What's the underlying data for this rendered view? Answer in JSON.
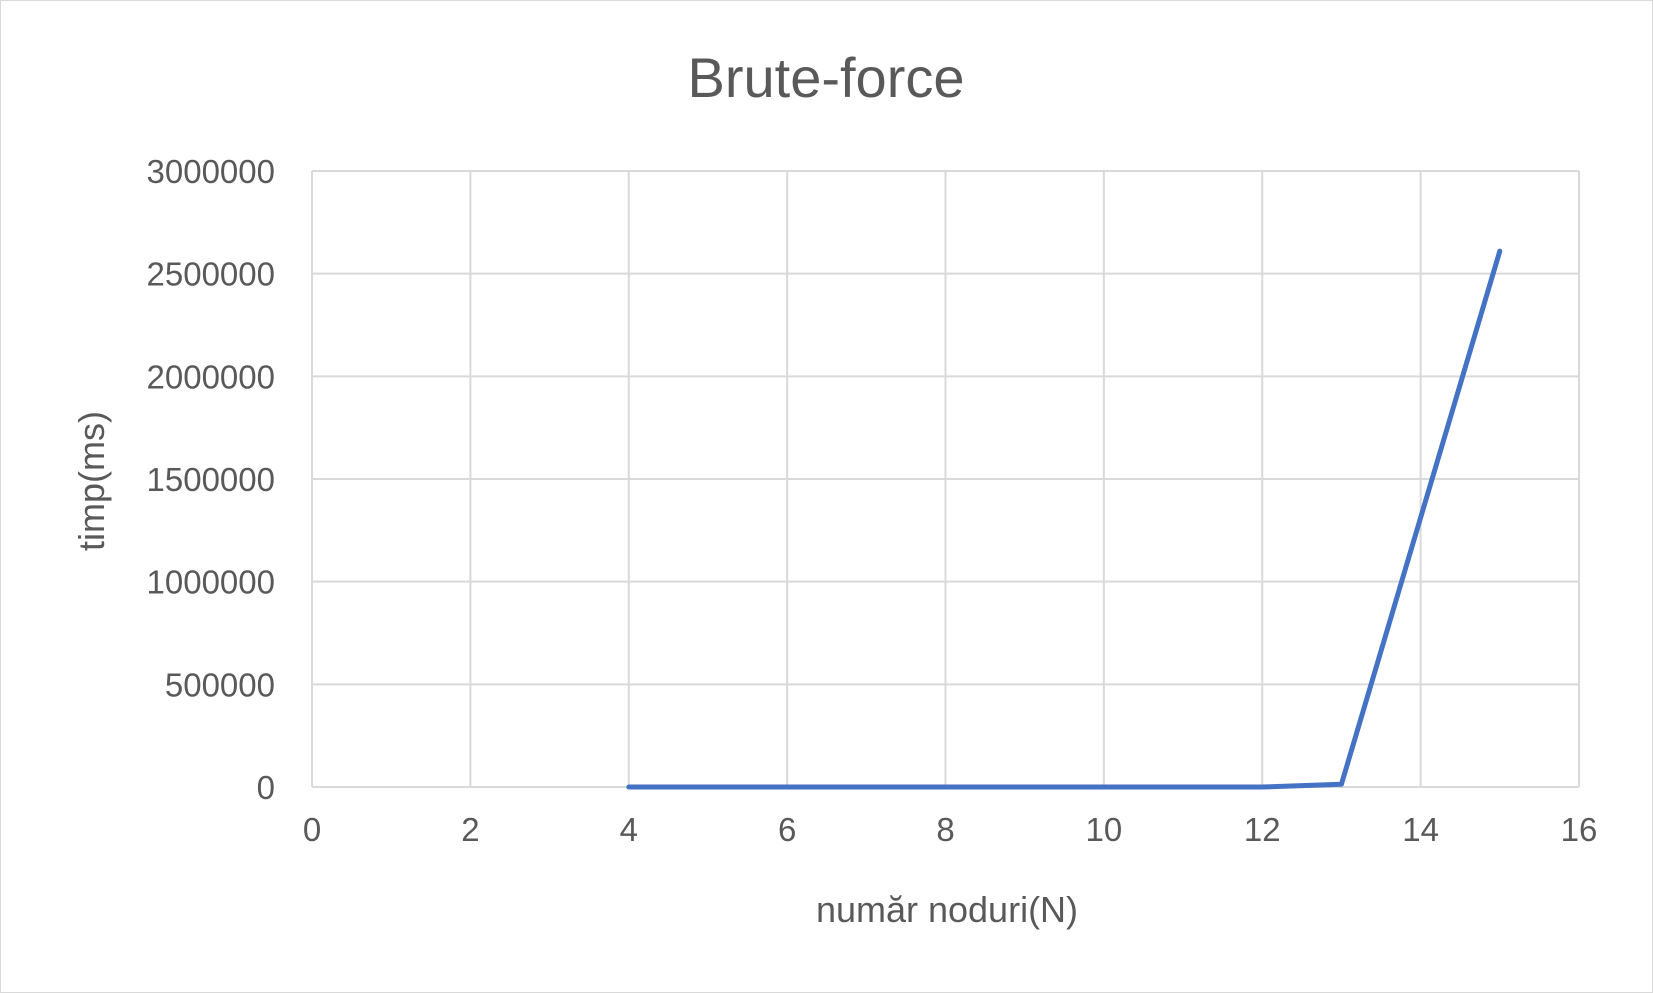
{
  "chart_data": {
    "type": "scatter",
    "title": "Brute-force",
    "xlabel": "număr noduri(N)",
    "ylabel": "timp(ms)",
    "xlim": [
      0,
      16
    ],
    "ylim": [
      0,
      3000000
    ],
    "x_ticks": [
      "0",
      "2",
      "4",
      "6",
      "8",
      "10",
      "12",
      "14",
      "16"
    ],
    "y_ticks": [
      "0",
      "500000",
      "1000000",
      "1500000",
      "2000000",
      "2500000",
      "3000000"
    ],
    "grid": true,
    "legend": "none",
    "series": [
      {
        "color": "#4472c4",
        "x": [
          4,
          5,
          6,
          7,
          8,
          9,
          10,
          11,
          12,
          13,
          15
        ],
        "y": [
          0,
          0,
          0,
          0,
          0,
          0,
          0,
          0,
          0,
          13000,
          2610000
        ]
      }
    ]
  }
}
